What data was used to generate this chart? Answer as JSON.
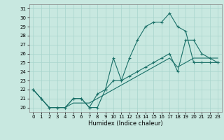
{
  "xlabel": "Humidex (Indice chaleur)",
  "bg_color": "#c8e8e0",
  "line_color": "#1a7068",
  "grid_color": "#a8d4cc",
  "xlim": [
    -0.5,
    23.5
  ],
  "ylim": [
    19.5,
    31.5
  ],
  "xticks": [
    0,
    1,
    2,
    3,
    4,
    5,
    6,
    7,
    8,
    9,
    10,
    11,
    12,
    13,
    14,
    15,
    16,
    17,
    18,
    19,
    20,
    21,
    22,
    23
  ],
  "yticks": [
    20,
    21,
    22,
    23,
    24,
    25,
    26,
    27,
    28,
    29,
    30,
    31
  ],
  "line1_x": [
    0,
    1,
    2,
    3,
    4,
    5,
    6,
    7,
    8,
    9,
    10,
    11,
    12,
    13,
    14,
    15,
    16,
    17,
    18,
    19,
    20,
    21,
    22,
    23
  ],
  "line1_y": [
    22,
    21,
    20,
    20,
    20,
    21,
    21,
    20,
    20,
    22,
    25.5,
    23,
    25.5,
    27.5,
    29,
    29.5,
    29.5,
    30.5,
    29,
    28.5,
    25,
    25,
    25,
    25
  ],
  "line2_x": [
    0,
    1,
    2,
    3,
    4,
    5,
    6,
    7,
    8,
    9,
    10,
    11,
    12,
    13,
    14,
    15,
    16,
    17,
    18,
    19,
    20,
    21,
    22,
    23
  ],
  "line2_y": [
    22,
    21,
    20,
    20,
    20,
    21,
    21,
    20,
    21.5,
    22,
    23,
    23,
    23.5,
    24,
    24.5,
    25,
    25.5,
    26,
    24,
    27.5,
    27.5,
    26,
    25.5,
    25
  ],
  "line3_x": [
    0,
    1,
    2,
    3,
    4,
    5,
    6,
    7,
    8,
    9,
    10,
    11,
    12,
    13,
    14,
    15,
    16,
    17,
    18,
    19,
    20,
    21,
    22,
    23
  ],
  "line3_y": [
    22,
    21,
    20,
    20,
    20,
    20.5,
    20.5,
    20.5,
    21,
    21.5,
    22,
    22.5,
    23,
    23.5,
    24,
    24.5,
    25,
    25.5,
    24.5,
    25,
    25.5,
    25.5,
    25.5,
    25.5
  ],
  "xlabel_fontsize": 6,
  "tick_fontsize": 5,
  "linewidth": 0.8,
  "marker_size": 3
}
